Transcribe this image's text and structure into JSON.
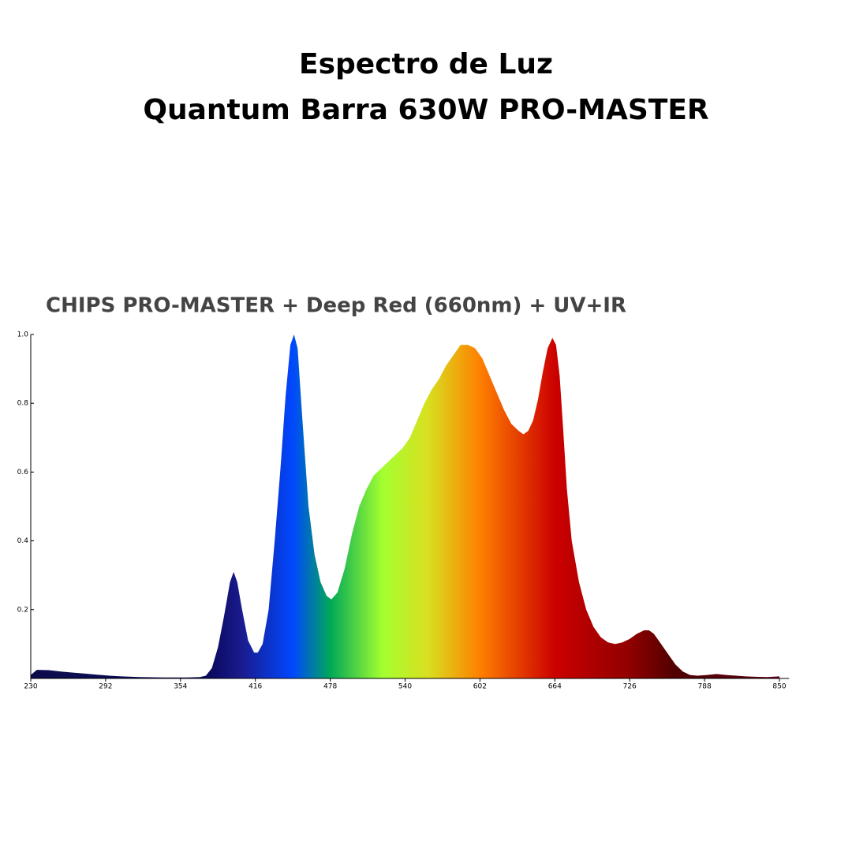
{
  "header": {
    "title": [
      "Espectro de Luz",
      "Quantum Barra 630W PRO-MASTER"
    ]
  },
  "chart_data": {
    "type": "area",
    "title": "CHIPS PRO-MASTER + Deep Red (660nm) + UV+IR",
    "x": [
      230,
      235,
      245,
      255,
      265,
      275,
      285,
      295,
      305,
      320,
      340,
      360,
      370,
      375,
      380,
      385,
      390,
      395,
      398,
      401,
      405,
      410,
      415,
      418,
      422,
      427,
      432,
      437,
      441,
      445,
      448,
      451,
      455,
      460,
      465,
      470,
      475,
      479,
      484,
      490,
      496,
      502,
      508,
      514,
      520,
      526,
      532,
      538,
      544,
      550,
      556,
      562,
      568,
      574,
      580,
      586,
      592,
      598,
      604,
      610,
      616,
      622,
      628,
      634,
      638,
      642,
      646,
      650,
      654,
      658,
      662,
      665,
      668,
      671,
      674,
      678,
      684,
      690,
      696,
      702,
      708,
      714,
      720,
      726,
      732,
      738,
      742,
      746,
      752,
      758,
      764,
      770,
      776,
      782,
      790,
      798,
      806,
      814,
      822,
      830,
      840,
      850
    ],
    "values": [
      0.01,
      0.025,
      0.024,
      0.02,
      0.017,
      0.014,
      0.011,
      0.008,
      0.006,
      0.004,
      0.003,
      0.003,
      0.004,
      0.008,
      0.03,
      0.09,
      0.18,
      0.28,
      0.31,
      0.28,
      0.2,
      0.11,
      0.075,
      0.075,
      0.1,
      0.2,
      0.4,
      0.62,
      0.82,
      0.97,
      1.0,
      0.96,
      0.75,
      0.5,
      0.36,
      0.28,
      0.24,
      0.23,
      0.25,
      0.32,
      0.42,
      0.5,
      0.55,
      0.59,
      0.61,
      0.63,
      0.65,
      0.67,
      0.7,
      0.75,
      0.8,
      0.84,
      0.87,
      0.91,
      0.94,
      0.97,
      0.97,
      0.96,
      0.93,
      0.88,
      0.83,
      0.78,
      0.74,
      0.72,
      0.71,
      0.72,
      0.75,
      0.81,
      0.89,
      0.96,
      0.99,
      0.97,
      0.88,
      0.72,
      0.55,
      0.4,
      0.28,
      0.2,
      0.15,
      0.12,
      0.105,
      0.1,
      0.105,
      0.115,
      0.13,
      0.14,
      0.14,
      0.13,
      0.1,
      0.07,
      0.04,
      0.02,
      0.01,
      0.008,
      0.01,
      0.013,
      0.01,
      0.008,
      0.006,
      0.005,
      0.004,
      0.006
    ],
    "xlim": [
      230,
      858
    ],
    "ylim": [
      0,
      1
    ],
    "xticks": [
      230,
      292,
      354,
      416,
      478,
      540,
      602,
      664,
      726,
      788,
      850
    ],
    "yticks": [
      {
        "value": 1,
        "label": "1.0"
      },
      0.8,
      0.6,
      0.4,
      0.2
    ]
  }
}
